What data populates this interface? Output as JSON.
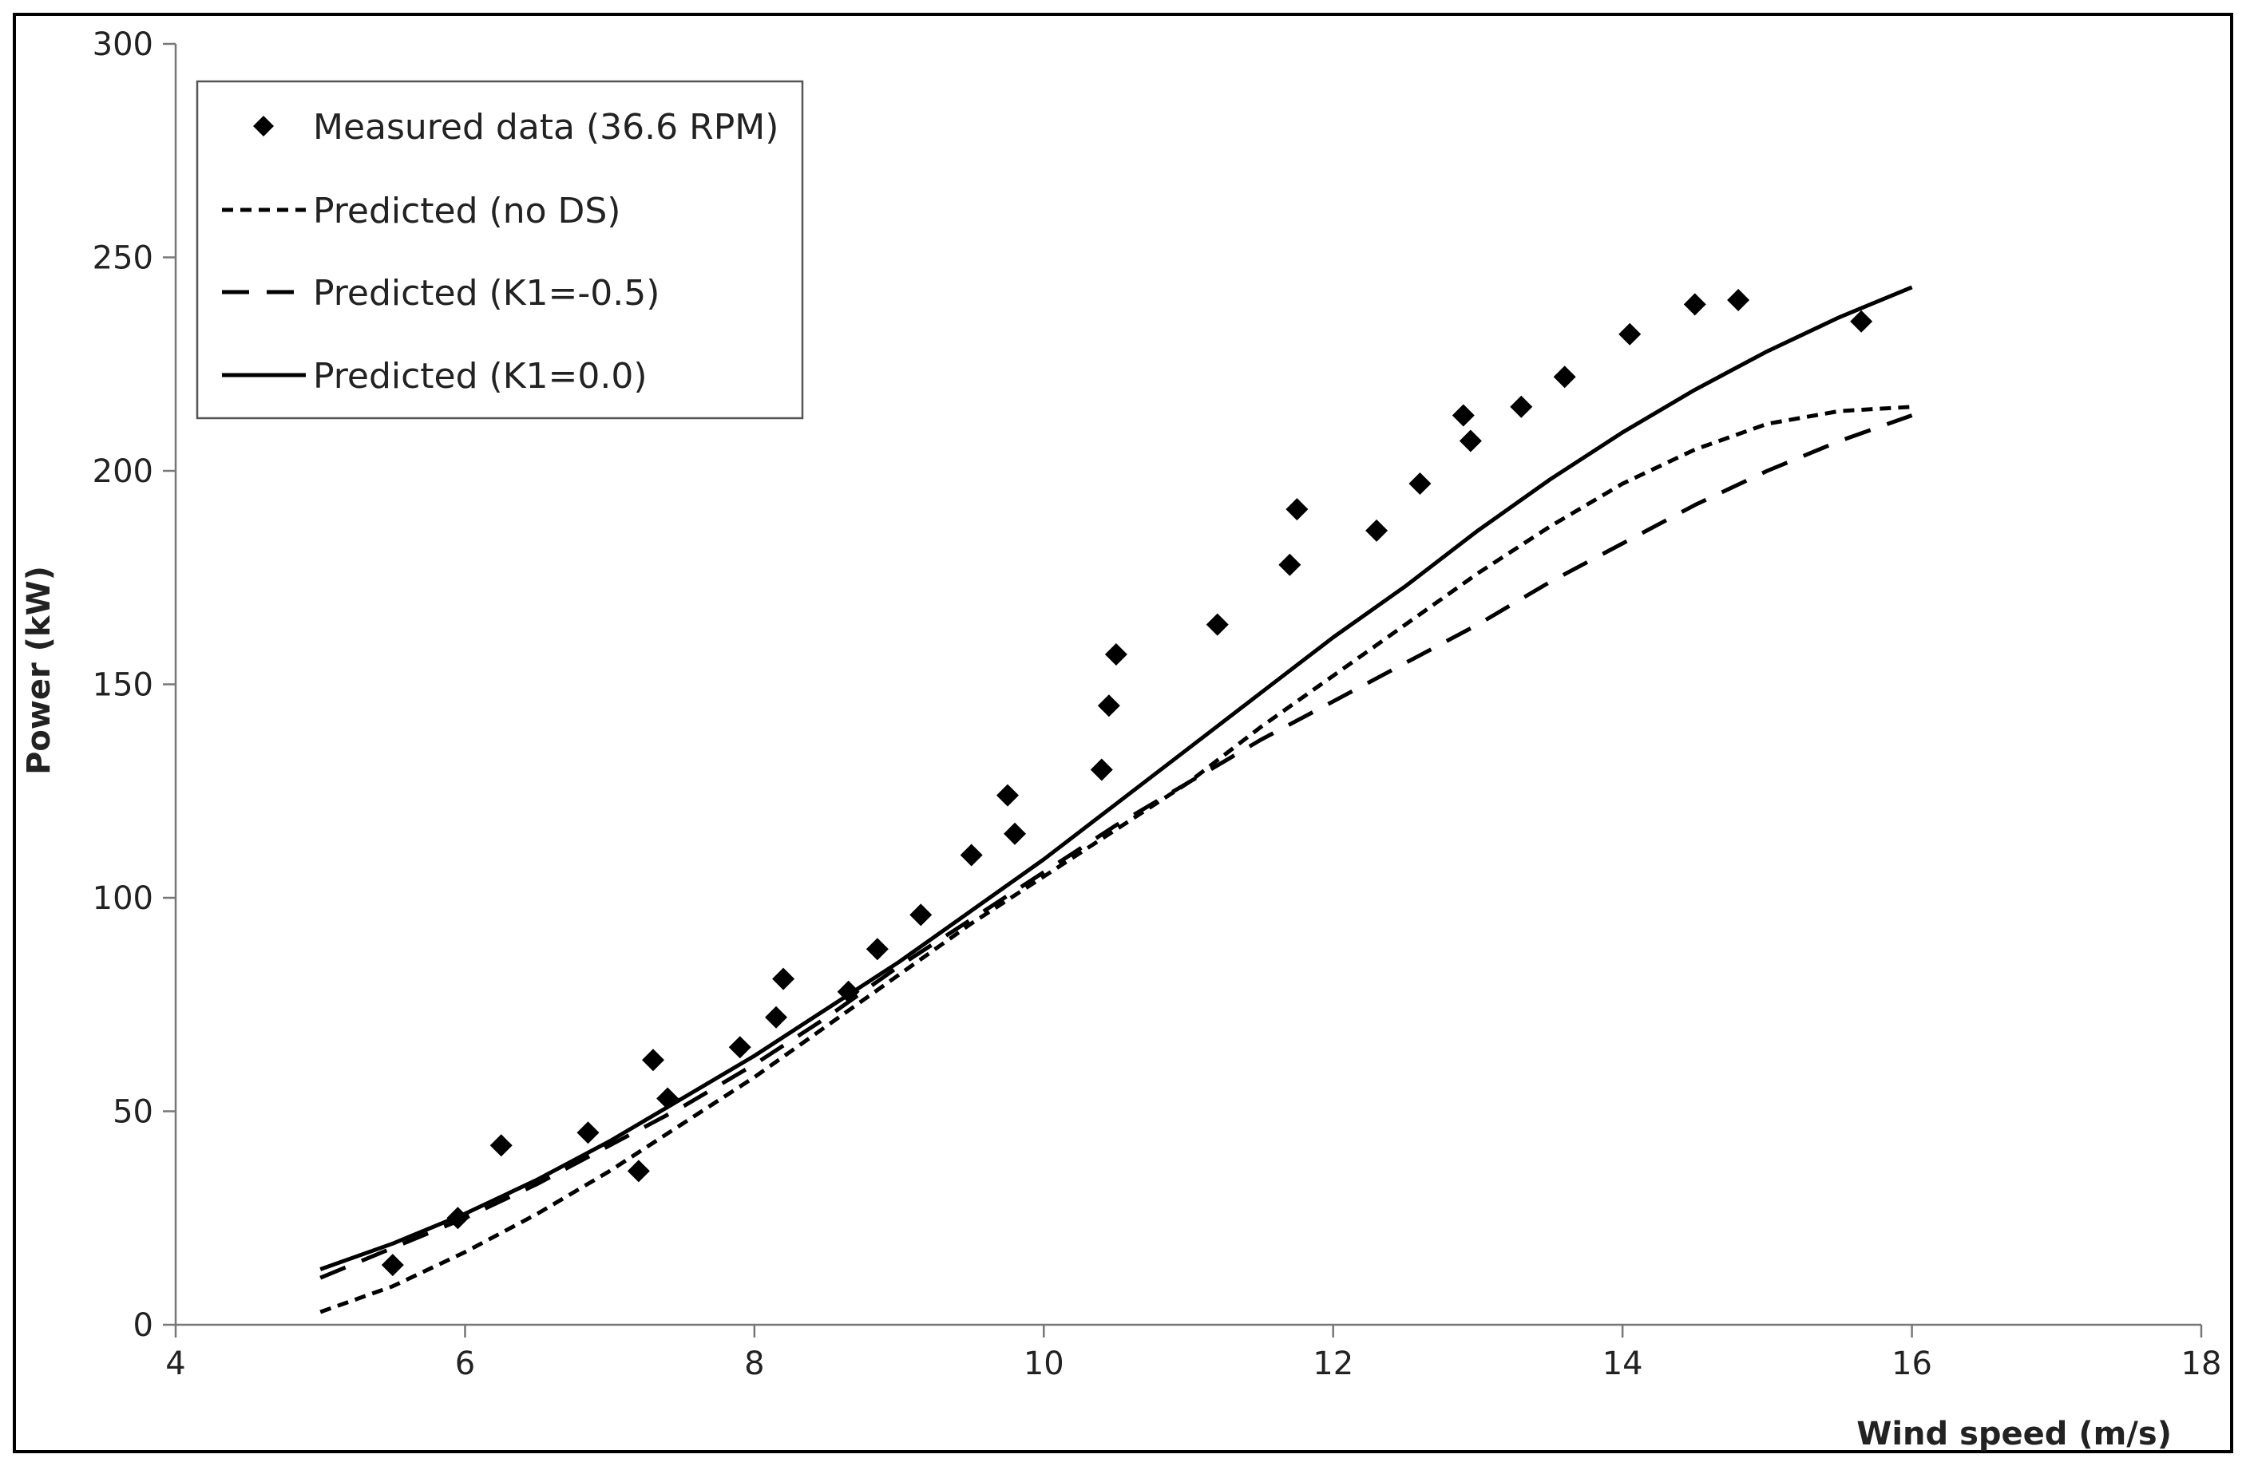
{
  "chart_data": {
    "type": "scatter",
    "title": "",
    "xlabel": "Wind speed  (m/s)",
    "ylabel": "Power (kW)",
    "xlim": [
      4,
      18
    ],
    "ylim": [
      0,
      300
    ],
    "xticks": [
      4,
      6,
      8,
      10,
      12,
      14,
      16,
      18
    ],
    "yticks": [
      0,
      50,
      100,
      150,
      200,
      250,
      300
    ],
    "grid": false,
    "legend_position": "top-left",
    "series": [
      {
        "name": "Measured data (36.6 RPM)",
        "kind": "markers",
        "marker": "diamond",
        "x": [
          5.5,
          5.95,
          6.25,
          6.85,
          7.2,
          7.3,
          7.4,
          7.9,
          8.15,
          8.2,
          8.65,
          8.85,
          9.15,
          9.5,
          9.75,
          9.8,
          10.4,
          10.45,
          10.5,
          11.2,
          11.7,
          11.75,
          12.3,
          12.6,
          12.9,
          12.95,
          13.3,
          13.6,
          14.05,
          14.5,
          14.8,
          15.65
        ],
        "y": [
          14,
          25,
          42,
          45,
          36,
          62,
          53,
          65,
          72,
          81,
          78,
          88,
          96,
          110,
          124,
          115,
          130,
          145,
          157,
          164,
          178,
          191,
          186,
          197,
          213,
          207,
          215,
          222,
          232,
          239,
          240,
          235
        ]
      },
      {
        "name": "Predicted (no DS)",
        "kind": "line",
        "dash": "short",
        "x": [
          5,
          5.5,
          6,
          6.5,
          7,
          7.5,
          8,
          8.5,
          9,
          9.5,
          10,
          10.5,
          11,
          11.5,
          12,
          12.5,
          13,
          13.5,
          14,
          14.5,
          15,
          15.5,
          16
        ],
        "y": [
          3,
          9,
          17,
          26,
          36,
          47,
          58,
          70,
          82,
          94,
          105,
          116,
          127,
          140,
          152,
          164,
          176,
          187,
          197,
          205,
          211,
          214,
          215
        ]
      },
      {
        "name": "Predicted (K1=-0.5)",
        "kind": "line",
        "dash": "long",
        "x": [
          5,
          5.5,
          6,
          6.5,
          7,
          7.5,
          8,
          8.5,
          9,
          9.5,
          10,
          10.5,
          11,
          11.5,
          12,
          12.5,
          13,
          13.5,
          14,
          14.5,
          15,
          15.5,
          16
        ],
        "y": [
          11,
          18,
          25,
          33,
          42,
          51,
          61,
          72,
          84,
          95,
          106,
          117,
          127,
          137,
          146,
          155,
          164,
          174,
          183,
          192,
          200,
          207,
          213
        ]
      },
      {
        "name": "Predicted (K1=0.0)",
        "kind": "line",
        "dash": "solid",
        "x": [
          5,
          5.5,
          6,
          6.5,
          7,
          7.5,
          8,
          8.5,
          9,
          9.5,
          10,
          10.5,
          11,
          11.5,
          12,
          12.5,
          13,
          13.5,
          14,
          14.5,
          15,
          15.5,
          16
        ],
        "y": [
          13,
          19,
          26,
          34,
          43,
          53,
          63,
          74,
          85,
          97,
          109,
          122,
          135,
          148,
          161,
          173,
          186,
          198,
          209,
          219,
          228,
          236,
          243
        ]
      }
    ]
  }
}
